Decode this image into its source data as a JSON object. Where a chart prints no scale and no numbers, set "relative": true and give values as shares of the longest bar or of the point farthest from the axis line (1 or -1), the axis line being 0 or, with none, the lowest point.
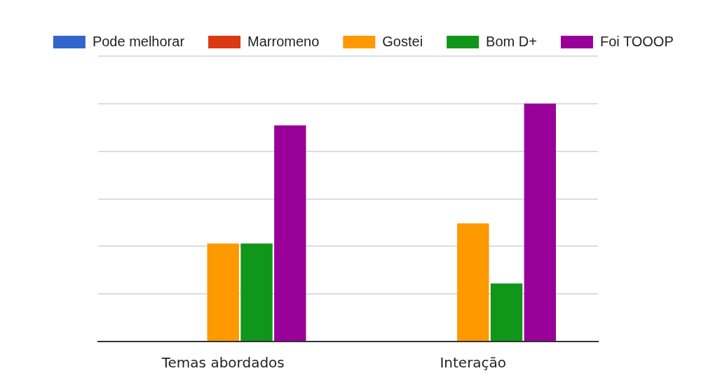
{
  "chart_data": {
    "type": "bar",
    "relative": true,
    "categories": [
      "Temas abordados",
      "Interação"
    ],
    "series": [
      {
        "name": "Pode melhorar",
        "color": "#3366cc",
        "values": [
          0,
          0
        ]
      },
      {
        "name": "Marromeno",
        "color": "#dc3912",
        "values": [
          0,
          0
        ]
      },
      {
        "name": "Gostei",
        "color": "#ff9900",
        "values": [
          0.412,
          0.497
        ]
      },
      {
        "name": "Bom D+",
        "color": "#109618",
        "values": [
          0.412,
          0.244
        ]
      },
      {
        "name": "Foi TOOOP",
        "color": "#990099",
        "values": [
          0.909,
          1
        ]
      }
    ],
    "grid": "y",
    "legend": "top",
    "tick_labels": "x"
  }
}
